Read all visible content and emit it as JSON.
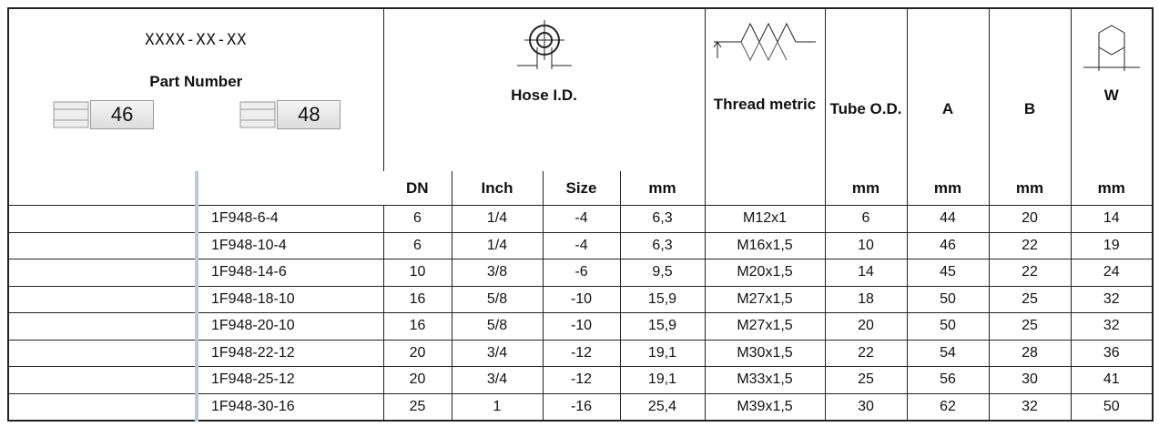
{
  "header": {
    "code": "XXXX-XX-XX",
    "part_number": "Part Number",
    "badge_left": "46",
    "badge_right": "48",
    "hose_id": "Hose I.D.",
    "thread": "Thread metric",
    "tube_od": "Tube O.D.",
    "a": "A",
    "b": "B",
    "w": "W",
    "units": {
      "dn": "DN",
      "inch": "Inch",
      "size": "Size",
      "hose_mm": "mm",
      "tube_mm": "mm",
      "a_mm": "mm",
      "b_mm": "mm",
      "w_mm": "mm"
    }
  },
  "table": {
    "rows": [
      [
        "1F948-6-4",
        "6",
        "1/4",
        "-4",
        "6,3",
        "M12x1",
        "6",
        "44",
        "20",
        "14"
      ],
      [
        "1F948-10-4",
        "6",
        "1/4",
        "-4",
        "6,3",
        "M16x1,5",
        "10",
        "46",
        "22",
        "19"
      ],
      [
        "1F948-14-6",
        "10",
        "3/8",
        "-6",
        "9,5",
        "M20x1,5",
        "14",
        "45",
        "22",
        "24"
      ],
      [
        "1F948-18-10",
        "16",
        "5/8",
        "-10",
        "15,9",
        "M27x1,5",
        "18",
        "50",
        "25",
        "32"
      ],
      [
        "1F948-20-10",
        "16",
        "5/8",
        "-10",
        "15,9",
        "M27x1,5",
        "20",
        "50",
        "25",
        "32"
      ],
      [
        "1F948-22-12",
        "20",
        "3/4",
        "-12",
        "19,1",
        "M30x1,5",
        "22",
        "54",
        "28",
        "36"
      ],
      [
        "1F948-25-12",
        "20",
        "3/4",
        "-12",
        "19,1",
        "M33x1,5",
        "25",
        "56",
        "30",
        "41"
      ],
      [
        "1F948-30-16",
        "25",
        "1",
        "-16",
        "25,4",
        "M39x1,5",
        "30",
        "62",
        "32",
        "50"
      ]
    ]
  }
}
